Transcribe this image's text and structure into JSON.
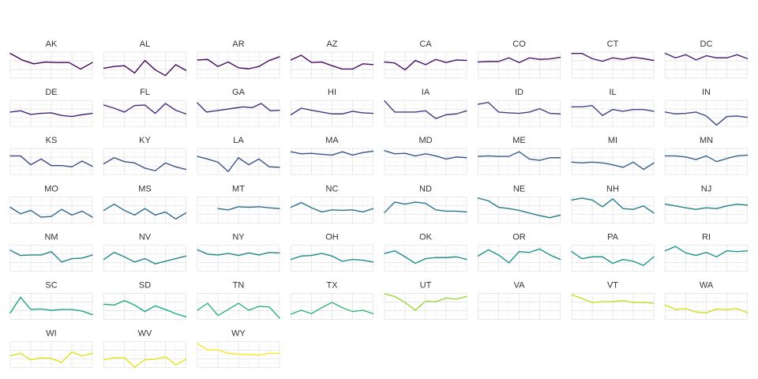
{
  "chart_data": {
    "type": "line",
    "layout": "small-multiples",
    "columns": 8,
    "grid": true,
    "ylim": [
      0,
      1
    ],
    "panels": [
      {
        "name": "AK",
        "color": "#440154",
        "values": [
          0.95,
          0.7,
          0.55,
          0.62,
          0.6,
          0.6,
          0.35,
          0.6
        ]
      },
      {
        "name": "AL",
        "color": "#450559",
        "values": [
          0.38,
          0.45,
          0.48,
          0.2,
          0.68,
          0.32,
          0.1,
          0.52,
          0.3
        ]
      },
      {
        "name": "AR",
        "color": "#46085c",
        "values": [
          0.7,
          0.72,
          0.45,
          0.62,
          0.4,
          0.36,
          0.45,
          0.68,
          0.82
        ]
      },
      {
        "name": "AZ",
        "color": "#470d60",
        "values": [
          0.7,
          0.88,
          0.6,
          0.62,
          0.48,
          0.35,
          0.35,
          0.55,
          0.52
        ]
      },
      {
        "name": "CA",
        "color": "#471063",
        "values": [
          0.62,
          0.58,
          0.32,
          0.68,
          0.52,
          0.72,
          0.6,
          0.7,
          0.68
        ]
      },
      {
        "name": "CO",
        "color": "#481769",
        "values": [
          0.62,
          0.64,
          0.64,
          0.78,
          0.6,
          0.78,
          0.72,
          0.74,
          0.8
        ]
      },
      {
        "name": "CT",
        "color": "#481a6c",
        "values": [
          0.95,
          0.95,
          0.75,
          0.65,
          0.78,
          0.72,
          0.8,
          0.75,
          0.68
        ]
      },
      {
        "name": "DC",
        "color": "#482173",
        "values": [
          0.95,
          0.78,
          0.9,
          0.7,
          0.86,
          0.78,
          0.78,
          0.9,
          0.75
        ]
      },
      {
        "name": "DE",
        "color": "#482576",
        "values": [
          0.55,
          0.6,
          0.46,
          0.5,
          0.52,
          0.42,
          0.38,
          0.45,
          0.5
        ]
      },
      {
        "name": "FL",
        "color": "#472c7a",
        "values": [
          0.82,
          0.7,
          0.55,
          0.8,
          0.82,
          0.5,
          0.88,
          0.62,
          0.48
        ]
      },
      {
        "name": "GA",
        "color": "#46307e",
        "values": [
          0.9,
          0.55,
          0.6,
          0.65,
          0.7,
          0.75,
          0.72,
          0.88,
          0.6,
          0.62
        ]
      },
      {
        "name": "HI",
        "color": "#453781",
        "values": [
          0.45,
          0.7,
          0.62,
          0.55,
          0.48,
          0.48,
          0.58,
          0.52,
          0.5
        ]
      },
      {
        "name": "IA",
        "color": "#443a83",
        "values": [
          0.98,
          0.55,
          0.55,
          0.55,
          0.6,
          0.3,
          0.45,
          0.48,
          0.6
        ]
      },
      {
        "name": "ID",
        "color": "#424086",
        "values": [
          0.85,
          0.92,
          0.55,
          0.52,
          0.5,
          0.55,
          0.68,
          0.5,
          0.48
        ]
      },
      {
        "name": "IL",
        "color": "#414487",
        "values": [
          0.75,
          0.75,
          0.8,
          0.42,
          0.65,
          0.58,
          0.65,
          0.65,
          0.58
        ]
      },
      {
        "name": "IN",
        "color": "#3f4889",
        "values": [
          0.55,
          0.48,
          0.5,
          0.55,
          0.4,
          0.05,
          0.38,
          0.4,
          0.35
        ]
      },
      {
        "name": "KS",
        "color": "#3e4c8a",
        "values": [
          0.72,
          0.72,
          0.38,
          0.6,
          0.35,
          0.35,
          0.3,
          0.52,
          0.32
        ]
      },
      {
        "name": "KY",
        "color": "#3c508b",
        "values": [
          0.42,
          0.65,
          0.5,
          0.45,
          0.25,
          0.15,
          0.45,
          0.3,
          0.2
        ]
      },
      {
        "name": "LA",
        "color": "#3b528b",
        "values": [
          0.7,
          0.6,
          0.48,
          0.12,
          0.65,
          0.38,
          0.6,
          0.3,
          0.28
        ]
      },
      {
        "name": "MA",
        "color": "#39568c",
        "values": [
          0.88,
          0.8,
          0.82,
          0.78,
          0.75,
          0.88,
          0.75,
          0.85,
          0.9
        ]
      },
      {
        "name": "MD",
        "color": "#375a8c",
        "values": [
          0.92,
          0.8,
          0.82,
          0.72,
          0.8,
          0.72,
          0.6,
          0.68,
          0.65
        ]
      },
      {
        "name": "ME",
        "color": "#365d8d",
        "values": [
          0.7,
          0.72,
          0.7,
          0.7,
          0.88,
          0.6,
          0.55,
          0.65,
          0.65
        ]
      },
      {
        "name": "MI",
        "color": "#34618d",
        "values": [
          0.48,
          0.45,
          0.48,
          0.45,
          0.38,
          0.28,
          0.48,
          0.2,
          0.45
        ]
      },
      {
        "name": "MN",
        "color": "#33638d",
        "values": [
          0.72,
          0.72,
          0.68,
          0.58,
          0.72,
          0.5,
          0.62,
          0.72,
          0.75
        ]
      },
      {
        "name": "MO",
        "color": "#31678e",
        "values": [
          0.6,
          0.35,
          0.48,
          0.22,
          0.25,
          0.52,
          0.3,
          0.45,
          0.22
        ]
      },
      {
        "name": "MS",
        "color": "#306a8e",
        "values": [
          0.48,
          0.72,
          0.48,
          0.3,
          0.55,
          0.3,
          0.42,
          0.15,
          0.38
        ]
      },
      {
        "name": "MT",
        "color": "#2e6e8e",
        "values": [
          null,
          null,
          0.55,
          0.5,
          0.62,
          0.6,
          0.62,
          0.58,
          0.55
        ]
      },
      {
        "name": "NC",
        "color": "#2d718e",
        "values": [
          0.6,
          0.78,
          0.58,
          0.42,
          0.5,
          0.48,
          0.5,
          0.42,
          0.55
        ]
      },
      {
        "name": "ND",
        "color": "#2b758e",
        "values": [
          0.4,
          0.8,
          0.72,
          0.8,
          0.75,
          0.5,
          0.45,
          0.45,
          0.42
        ]
      },
      {
        "name": "NE",
        "color": "#2a788e",
        "values": [
          0.95,
          0.85,
          0.6,
          0.55,
          0.48,
          0.38,
          0.28,
          0.2,
          0.3
        ]
      },
      {
        "name": "NH",
        "color": "#297b8e",
        "values": [
          0.88,
          0.95,
          0.88,
          0.62,
          0.92,
          0.55,
          0.52,
          0.65,
          0.38
        ]
      },
      {
        "name": "NJ",
        "color": "#277f8e",
        "values": [
          0.72,
          0.65,
          0.58,
          0.52,
          0.58,
          0.55,
          0.65,
          0.72,
          0.68
        ]
      },
      {
        "name": "NM",
        "color": "#26828e",
        "values": [
          0.8,
          0.6,
          0.62,
          0.62,
          0.75,
          0.35,
          0.48,
          0.5,
          0.62
        ]
      },
      {
        "name": "NV",
        "color": "#25858e",
        "values": [
          0.45,
          0.72,
          0.55,
          0.35,
          0.48,
          0.28,
          0.38,
          0.48,
          0.58
        ]
      },
      {
        "name": "NY",
        "color": "#24878e",
        "values": [
          0.82,
          0.65,
          0.62,
          0.68,
          0.6,
          0.7,
          0.62,
          0.72,
          0.7
        ]
      },
      {
        "name": "OH",
        "color": "#228b8d",
        "values": [
          0.45,
          0.58,
          0.6,
          0.68,
          0.58,
          0.38,
          0.45,
          0.42,
          0.35
        ]
      },
      {
        "name": "OK",
        "color": "#218e8d",
        "values": [
          0.68,
          0.78,
          0.55,
          0.3,
          0.48,
          0.52,
          0.52,
          0.55,
          0.45
        ]
      },
      {
        "name": "OR",
        "color": "#20928c",
        "values": [
          0.58,
          0.82,
          0.62,
          0.32,
          0.75,
          0.72,
          0.85,
          0.62,
          0.45
        ]
      },
      {
        "name": "PA",
        "color": "#1f958b",
        "values": [
          0.75,
          0.48,
          0.55,
          0.55,
          0.3,
          0.45,
          0.38,
          0.22,
          0.55
        ]
      },
      {
        "name": "RI",
        "color": "#1f988b",
        "values": [
          0.78,
          0.95,
          0.7,
          0.6,
          0.72,
          0.55,
          0.78,
          0.75,
          0.78
        ]
      },
      {
        "name": "SC",
        "color": "#20a386",
        "values": [
          0.25,
          0.85,
          0.38,
          0.4,
          0.35,
          0.38,
          0.38,
          0.32,
          0.18
        ]
      },
      {
        "name": "SD",
        "color": "#22a785",
        "values": [
          0.58,
          0.55,
          0.72,
          0.55,
          0.3,
          0.52,
          0.38,
          0.22,
          0.1
        ]
      },
      {
        "name": "TN",
        "color": "#2eb37c",
        "values": [
          0.35,
          0.62,
          0.15,
          0.38,
          0.62,
          0.35,
          0.5,
          0.48,
          0.05
        ]
      },
      {
        "name": "TX",
        "color": "#35b779",
        "values": [
          0.2,
          0.35,
          0.22,
          0.45,
          0.65,
          0.45,
          0.3,
          0.35,
          0.22
        ]
      },
      {
        "name": "UT",
        "color": "#9bd93c",
        "values": [
          0.98,
          0.88,
          0.65,
          0.35,
          0.7,
          0.68,
          0.82,
          0.78,
          0.88
        ]
      },
      {
        "name": "VA",
        "color": "#a5db36",
        "values": []
      },
      {
        "name": "VT",
        "color": "#c2df23",
        "values": [
          0.95,
          0.8,
          0.65,
          0.68,
          0.68,
          0.72,
          0.65,
          0.65,
          0.62
        ]
      },
      {
        "name": "WA",
        "color": "#d5e21a",
        "values": [
          0.55,
          0.38,
          0.42,
          0.28,
          0.25,
          0.4,
          0.38,
          0.42,
          0.25
        ]
      },
      {
        "name": "WI",
        "color": "#dde318",
        "values": [
          0.45,
          0.55,
          0.3,
          0.38,
          0.35,
          0.2,
          0.6,
          0.45,
          0.55
        ]
      },
      {
        "name": "WV",
        "color": "#e7e419",
        "values": [
          0.3,
          0.38,
          0.38,
          0.02,
          0.3,
          0.32,
          0.42,
          0.1,
          0.32
        ]
      },
      {
        "name": "WY",
        "color": "#fde725",
        "values": [
          0.92,
          0.68,
          0.68,
          0.55,
          0.52,
          0.5,
          0.48,
          0.55,
          0.55
        ]
      }
    ]
  }
}
